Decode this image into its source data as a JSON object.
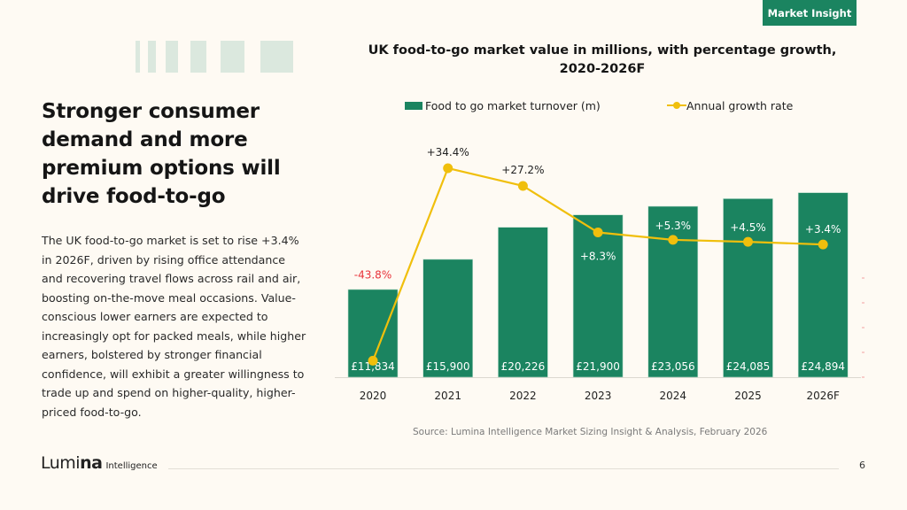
{
  "badge": "Market Insight",
  "headline": "Stronger consumer demand and more premium options will drive food-to-go",
  "body": "The UK food-to-go market is set to rise +3.4% in 2026F, driven by rising office attendance and recovering travel flows across rail and air, boosting on-the-move meal occasions. Value-conscious lower earners are expected to increasingly opt for packed meals, while higher earners, bolstered by stronger financial confidence, will exhibit a greater willingness to trade up and spend on higher-quality, higher-priced food-to-go.",
  "footer": {
    "logo_main_light": "Lu",
    "logo_main_mid": "mi",
    "logo_main_bold": "na",
    "logo_sub": "Intelligence",
    "page_number": "6"
  },
  "colors": {
    "bar": "#1b8460",
    "line": "#f0bf0c",
    "negative_label": "#e8333a",
    "badge": "#1b8460"
  },
  "chart_data": {
    "type": "bar",
    "title": "UK food-to-go market value in millions, with percentage growth, 2020-2026F",
    "source": "Source: Lumina Intelligence Market Sizing Insight & Analysis, February 2026",
    "categories": [
      "2020",
      "2021",
      "2022",
      "2023",
      "2024",
      "2025",
      "2026F"
    ],
    "legend_position": "top",
    "grid": false,
    "series": [
      {
        "name": "Food to go market turnover (m)",
        "type": "bar",
        "values": [
          11834,
          15900,
          20226,
          21900,
          23056,
          24085,
          24894
        ],
        "labels": [
          "£11,834",
          "£15,900",
          "£20,226",
          "£21,900",
          "£23,056",
          "£24,085",
          "£24,894"
        ]
      },
      {
        "name": "Annual growth rate",
        "type": "line",
        "values": [
          -43.8,
          34.4,
          27.2,
          8.3,
          5.3,
          4.5,
          3.4
        ],
        "labels": [
          "-43.8%",
          "+34.4%",
          "+27.2%",
          "+8.3%",
          "+5.3%",
          "+4.5%",
          "+3.4%"
        ]
      }
    ],
    "ylim_bar": [
      0,
      25000
    ],
    "ylim_line": [
      -50,
      40
    ]
  }
}
